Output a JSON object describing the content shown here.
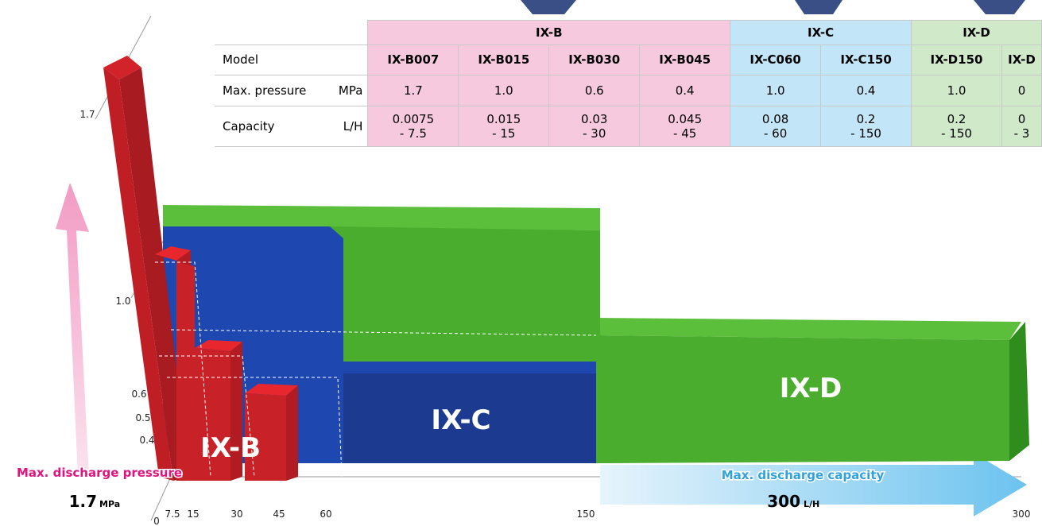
{
  "table": {
    "groups": [
      "IX-B",
      "IX-C",
      "IX-D"
    ],
    "header": [
      "Model",
      "IX-B007",
      "IX-B015",
      "IX-B030",
      "IX-B045",
      "IX-C060",
      "IX-C150",
      "IX-D150",
      "IX-D"
    ],
    "pressure": {
      "label": "Max. pressure",
      "unit": "MPa",
      "values": [
        "1.7",
        "1.0",
        "0.6",
        "0.4",
        "1.0",
        "0.4",
        "1.0",
        "0"
      ]
    },
    "capacity": {
      "label": "Capacity",
      "unit": "L/H",
      "values": [
        [
          "0.0075",
          "- 7.5"
        ],
        [
          "0.015",
          "- 15"
        ],
        [
          "0.03",
          "- 30"
        ],
        [
          "0.045",
          "- 45"
        ],
        [
          "0.08",
          "- 60"
        ],
        [
          "0.2",
          "- 150"
        ],
        [
          "0.2",
          "- 150"
        ],
        [
          "0",
          "- 3"
        ]
      ]
    }
  },
  "diagram": {
    "blocks": [
      "IX-B",
      "IX-C",
      "IX-D"
    ],
    "y_axis": {
      "title": "Max. discharge pressure",
      "max": "1.7",
      "unit": "MPa",
      "ticks": [
        "1.7",
        "1.0",
        "0.6",
        "0.5",
        "0.4",
        "0"
      ]
    },
    "x_axis": {
      "title": "Max. discharge capacity",
      "max": "300",
      "unit": "L/H",
      "ticks": [
        "7.5",
        "15",
        "30",
        "45",
        "60",
        "150",
        "300"
      ]
    }
  }
}
